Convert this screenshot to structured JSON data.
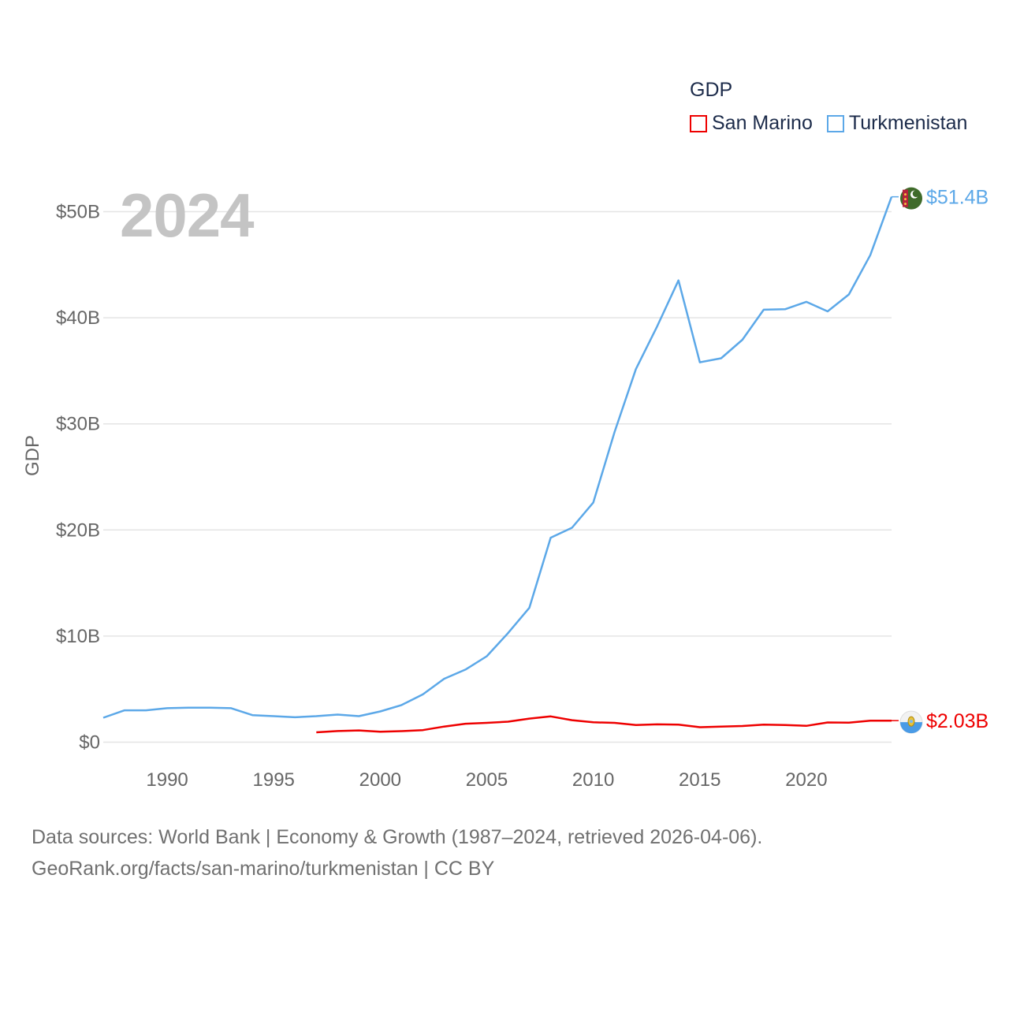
{
  "legend": {
    "title": "GDP",
    "items": [
      {
        "name": "San Marino",
        "color": "#ee0000"
      },
      {
        "name": "Turkmenistan",
        "color": "#5ca8e8"
      }
    ]
  },
  "year_label": "2024",
  "source": {
    "line1": "Data sources: World Bank | Economy & Growth (1987–2024, retrieved 2026-04-06).",
    "line2": "GeoRank.org/facts/san-marino/turkmenistan | CC BY"
  },
  "chart_data": {
    "type": "line",
    "title": "GDP",
    "xlabel": "",
    "ylabel": "GDP",
    "xlim": [
      1987,
      2024
    ],
    "ylim": [
      0,
      50
    ],
    "y_unit": "billions USD",
    "grid": true,
    "legend_position": "top-right",
    "x_ticks": [
      1990,
      1995,
      2000,
      2005,
      2010,
      2015,
      2020
    ],
    "y_ticks": [
      {
        "value": 0,
        "label": "$0"
      },
      {
        "value": 10,
        "label": "$10B"
      },
      {
        "value": 20,
        "label": "$20B"
      },
      {
        "value": 30,
        "label": "$30B"
      },
      {
        "value": 40,
        "label": "$40B"
      },
      {
        "value": 50,
        "label": "$50B"
      }
    ],
    "series": [
      {
        "name": "San Marino",
        "color": "#ee0000",
        "end_label": "$2.03B",
        "flag": "san-marino-flag-icon",
        "x": [
          1997,
          1998,
          1999,
          2000,
          2001,
          2002,
          2003,
          2004,
          2005,
          2006,
          2007,
          2008,
          2009,
          2010,
          2011,
          2012,
          2013,
          2014,
          2015,
          2016,
          2017,
          2018,
          2019,
          2020,
          2021,
          2022,
          2023,
          2024
        ],
        "y": [
          0.93,
          1.05,
          1.11,
          0.99,
          1.04,
          1.14,
          1.47,
          1.74,
          1.82,
          1.93,
          2.22,
          2.43,
          2.07,
          1.87,
          1.82,
          1.61,
          1.68,
          1.65,
          1.41,
          1.46,
          1.52,
          1.66,
          1.62,
          1.54,
          1.86,
          1.84,
          2.03,
          2.03
        ]
      },
      {
        "name": "Turkmenistan",
        "color": "#5ca8e8",
        "end_label": "$51.4B",
        "flag": "turkmenistan-flag-icon",
        "x": [
          1987,
          1988,
          1989,
          1990,
          1991,
          1992,
          1993,
          1994,
          1995,
          1996,
          1997,
          1998,
          1999,
          2000,
          2001,
          2002,
          2003,
          2004,
          2005,
          2006,
          2007,
          2008,
          2009,
          2010,
          2011,
          2012,
          2013,
          2014,
          2015,
          2016,
          2017,
          2018,
          2019,
          2020,
          2021,
          2022,
          2023,
          2024
        ],
        "y": [
          2.3,
          3.0,
          3.0,
          3.2,
          3.25,
          3.25,
          3.2,
          2.55,
          2.45,
          2.35,
          2.45,
          2.6,
          2.45,
          2.9,
          3.5,
          4.5,
          5.97,
          6.84,
          8.1,
          10.28,
          12.66,
          19.27,
          20.21,
          22.58,
          29.23,
          35.16,
          39.2,
          43.52,
          35.8,
          36.18,
          37.93,
          40.76,
          40.8,
          41.5,
          40.6,
          42.2,
          45.9,
          51.4
        ]
      }
    ]
  }
}
